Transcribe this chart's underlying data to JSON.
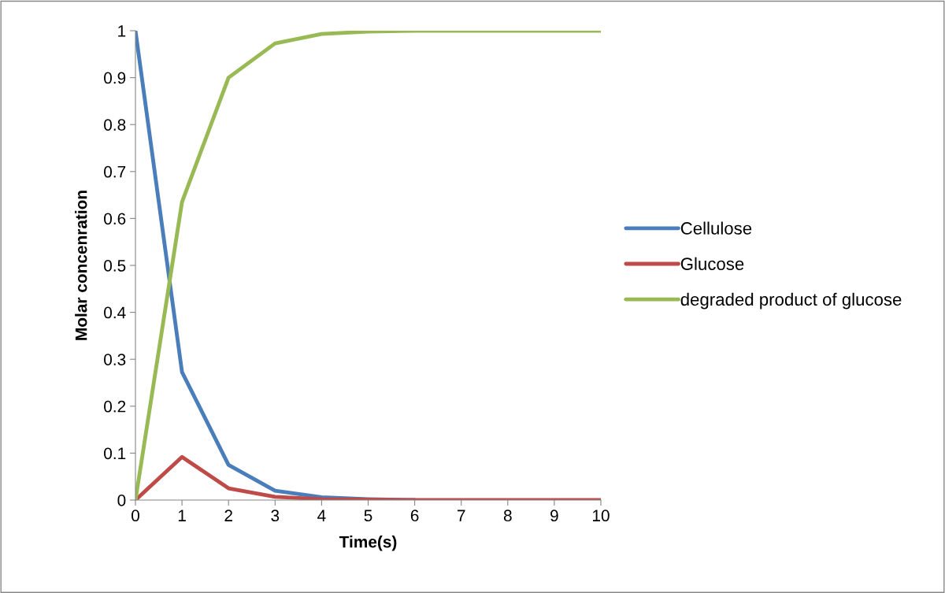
{
  "chart_data": {
    "type": "line",
    "xlabel": "Time(s)",
    "ylabel": "Molar concenration",
    "x": [
      0,
      1,
      2,
      3,
      4,
      5,
      6,
      7,
      8,
      9,
      10
    ],
    "series": [
      {
        "name": "Cellulose",
        "color": "#4a7ebb",
        "values": [
          1,
          0.273,
          0.075,
          0.02,
          0.006,
          0.002,
          0,
          null,
          null,
          null,
          null
        ]
      },
      {
        "name": "Glucose",
        "color": "#be4b48",
        "values": [
          0,
          0.092,
          0.025,
          0.007,
          0.002,
          0.001,
          0,
          0,
          0,
          0,
          0
        ]
      },
      {
        "name": "degraded product of glucose",
        "color": "#98b954",
        "values": [
          0,
          0.635,
          0.9,
          0.973,
          0.993,
          0.998,
          1,
          1,
          1,
          1,
          1
        ]
      }
    ],
    "xlim": [
      0,
      10
    ],
    "xticks": [
      0,
      1,
      2,
      3,
      4,
      5,
      6,
      7,
      8,
      9,
      10
    ],
    "ylim": [
      0,
      1
    ],
    "yticks": [
      0,
      0.1,
      0.2,
      0.3,
      0.4,
      0.5,
      0.6,
      0.7,
      0.8,
      0.9,
      1
    ],
    "grid": false,
    "legend": "right",
    "marker": "none",
    "line_style": "solid"
  }
}
